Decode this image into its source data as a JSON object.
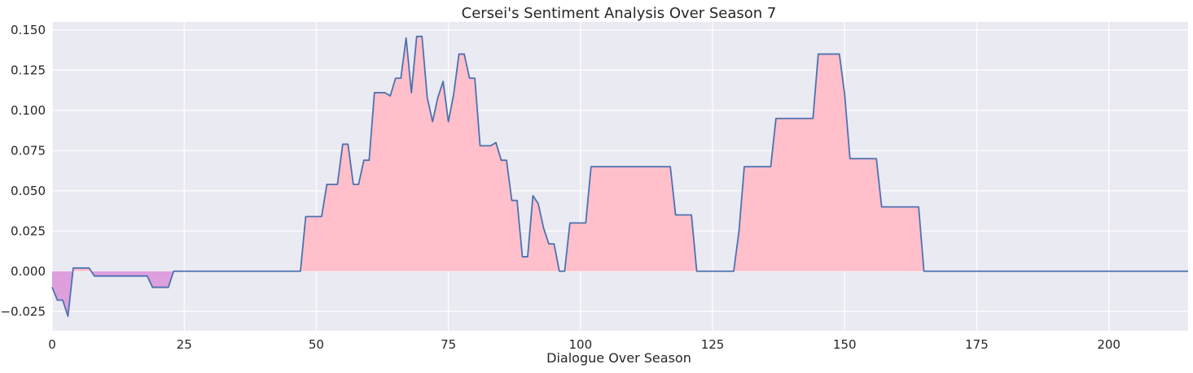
{
  "chart_data": {
    "type": "area",
    "title": "Cersei's Sentiment Analysis Over Season 7",
    "xlabel": "Dialogue Over Season",
    "ylabel": "",
    "xlim": [
      0,
      215
    ],
    "ylim": [
      -0.037,
      0.155
    ],
    "xticks": [
      0,
      25,
      50,
      75,
      100,
      125,
      150,
      175,
      200
    ],
    "yticks": [
      -0.025,
      0.0,
      0.025,
      0.05,
      0.075,
      0.1,
      0.125,
      0.15
    ],
    "ytick_labels": [
      "−0.025",
      "0.000",
      "0.025",
      "0.050",
      "0.075",
      "0.100",
      "0.125",
      "0.150"
    ],
    "grid": true,
    "colors": {
      "background": "#eaeaf2",
      "grid": "#ffffff",
      "line": "#4c72b0",
      "positive_fill": "#ffc0cb",
      "negative_fill": "#dda0dd"
    },
    "series": [
      {
        "x": [
          0,
          1,
          2,
          3,
          4,
          5,
          6,
          7,
          8,
          9,
          10,
          11,
          12,
          13,
          14,
          15,
          16,
          17,
          18,
          19,
          20,
          21,
          22,
          23,
          30,
          40,
          47,
          48,
          49,
          50,
          51,
          52,
          53,
          54,
          55,
          56,
          57,
          58,
          59,
          60,
          61,
          62,
          63,
          64,
          65,
          66,
          67,
          68,
          69,
          70,
          71,
          72,
          73,
          74,
          75,
          76,
          77,
          78,
          79,
          80,
          81,
          82,
          83,
          84,
          85,
          86,
          87,
          88,
          89,
          90,
          91,
          92,
          93,
          94,
          95,
          96,
          97,
          98,
          99,
          100,
          101,
          102,
          103,
          104,
          105,
          110,
          115,
          117,
          118,
          119,
          120,
          121,
          122,
          123,
          125,
          128,
          129,
          130,
          131,
          132,
          133,
          134,
          135,
          136,
          137,
          138,
          140,
          144,
          145,
          146,
          147,
          148,
          149,
          150,
          151,
          152,
          155,
          156,
          157,
          158,
          160,
          164,
          165,
          166,
          170,
          180,
          190,
          200,
          210,
          215
        ],
        "values": [
          -0.01,
          -0.018,
          -0.018,
          -0.028,
          0.002,
          0.002,
          0.002,
          0.002,
          -0.003,
          -0.003,
          -0.003,
          -0.003,
          -0.003,
          -0.003,
          -0.003,
          -0.003,
          -0.003,
          -0.003,
          -0.003,
          -0.01,
          -0.01,
          -0.01,
          -0.01,
          0.0,
          0.0,
          0.0,
          0.0,
          0.034,
          0.034,
          0.034,
          0.034,
          0.054,
          0.054,
          0.054,
          0.079,
          0.079,
          0.054,
          0.054,
          0.069,
          0.069,
          0.111,
          0.111,
          0.111,
          0.109,
          0.12,
          0.12,
          0.145,
          0.111,
          0.146,
          0.146,
          0.108,
          0.093,
          0.108,
          0.118,
          0.093,
          0.11,
          0.135,
          0.135,
          0.12,
          0.12,
          0.078,
          0.078,
          0.078,
          0.08,
          0.069,
          0.069,
          0.044,
          0.044,
          0.009,
          0.009,
          0.047,
          0.042,
          0.027,
          0.017,
          0.017,
          0.0,
          0.0,
          0.03,
          0.03,
          0.03,
          0.03,
          0.065,
          0.065,
          0.065,
          0.065,
          0.065,
          0.065,
          0.065,
          0.035,
          0.035,
          0.035,
          0.035,
          0.0,
          0.0,
          0.0,
          0.0,
          0.0,
          0.025,
          0.065,
          0.065,
          0.065,
          0.065,
          0.065,
          0.065,
          0.095,
          0.095,
          0.095,
          0.095,
          0.135,
          0.135,
          0.135,
          0.135,
          0.135,
          0.11,
          0.07,
          0.07,
          0.07,
          0.07,
          0.04,
          0.04,
          0.04,
          0.04,
          0.0,
          0.0,
          0.0,
          0.0,
          0.0,
          0.0,
          0.0,
          0.0
        ]
      }
    ]
  }
}
